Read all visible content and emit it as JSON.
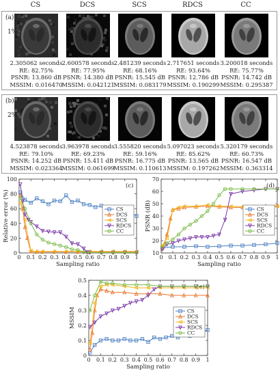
{
  "methods": [
    "CS",
    "DCS",
    "SCS",
    "RDCS",
    "CC"
  ],
  "colors": {
    "CS": "#4a7fc1",
    "DCS": "#e8742a",
    "SCS": "#f2b51e",
    "RDCS": "#7a38a8",
    "CC": "#77b941"
  },
  "panels": [
    {
      "tag": "(a)",
      "pct": "1%",
      "cells": [
        {
          "time": "2.305062 seconds",
          "re": "RE: 82.75%",
          "psnr": "PSNR: 13.860 dB",
          "mssim": "MSSIM: 0.016470"
        },
        {
          "time": "2.600578 seconds",
          "re": "RE: 77.95%",
          "psnr": "PSNR: 14.380 dB",
          "mssim": "MSSIM: 0.042121"
        },
        {
          "time": "2.481239 seconds",
          "re": "RE: 68.16%",
          "psnr": "PSNR: 15.545 dB",
          "mssim": "MSSIM: 0.083179"
        },
        {
          "time": "2.717651 seconds",
          "re": "RE: 93.64%",
          "psnr": "PSNR: 12.786 dB",
          "mssim": "MSSIM: 0.190299"
        },
        {
          "time": "3.200018 seconds",
          "re": "RE: 75.77%",
          "psnr": "PSNR: 14.742 dB",
          "mssim": "MSSIM: 0.295387"
        }
      ]
    },
    {
      "tag": "(b)",
      "pct": "2%",
      "cells": [
        {
          "time": "4.523878 seconds",
          "re": "RE: 79.10%",
          "psnr": "PSNR: 14.252 dB",
          "mssim": "MSSIM: 0.023364"
        },
        {
          "time": "3.963978 seconds",
          "re": "RE: 69.23%",
          "psnr": "PSNR: 15.411 dB",
          "mssim": "MSSIM: 0.061699"
        },
        {
          "time": "3.555820 seconds",
          "re": "RE: 59.16%",
          "psnr": "PSNR: 16.775 dB",
          "mssim": "MSSIM: 0.110613"
        },
        {
          "time": "5.097023 seconds",
          "re": "RE: 85.62%",
          "psnr": "PSNR: 13.565 dB",
          "mssim": "MSSIM: 0.197262"
        },
        {
          "time": "5.320179 seconds",
          "re": "RE: 60.73%",
          "psnr": "PSNR: 16.547 dB",
          "mssim": "MSSIM: 0.363314"
        }
      ]
    }
  ],
  "chart_data": [
    {
      "type": "line",
      "panel_label": "(c)",
      "xlabel": "Sampling ratio",
      "ylabel": "Relative error (%)",
      "xlim": [
        0,
        1
      ],
      "ylim": [
        0,
        100
      ],
      "xticks": [
        0,
        0.1,
        0.2,
        0.3,
        0.4,
        0.5,
        0.6,
        0.7,
        0.8,
        0.9,
        1
      ],
      "xtick_labels": [
        "0",
        "0.1",
        "0.2",
        "0.3",
        "0.4",
        "0.5",
        "0.6",
        "0.7",
        "0.8",
        "0.9",
        "1"
      ],
      "yticks": [
        0,
        20,
        40,
        60,
        80,
        100
      ],
      "ytick_labels": [
        "0",
        "20",
        "40",
        "60",
        "80",
        "100"
      ],
      "legend": "right",
      "series": [
        {
          "name": "CS",
          "x": [
            0.01,
            0.05,
            0.1,
            0.15,
            0.2,
            0.25,
            0.3,
            0.35,
            0.4,
            0.45,
            0.5,
            0.55,
            0.6,
            0.65,
            0.7,
            0.75,
            0.8,
            0.85,
            0.9,
            0.95,
            1
          ],
          "y": [
            82,
            72,
            68,
            74,
            70,
            66,
            71,
            70,
            78,
            69,
            71,
            66,
            65,
            62,
            64,
            60,
            61,
            54,
            62,
            55,
            50
          ]
        },
        {
          "name": "DCS",
          "x": [
            0.01,
            0.03,
            0.05,
            0.07,
            0.1,
            0.15,
            0.2,
            0.3,
            0.4,
            0.5,
            0.6,
            0.7,
            0.8,
            0.9,
            1
          ],
          "y": [
            78,
            60,
            35,
            20,
            2,
            1.5,
            1.5,
            1.5,
            1.5,
            1.5,
            1.5,
            1.5,
            1.5,
            1.5,
            1.5
          ]
        },
        {
          "name": "SCS",
          "x": [
            0.01,
            0.05,
            0.1,
            0.15,
            0.2,
            0.3,
            0.4,
            0.5,
            0.6,
            0.7,
            0.8,
            0.9,
            1
          ],
          "y": [
            68,
            45,
            3,
            2,
            2,
            2,
            2,
            2,
            2,
            2,
            2,
            2,
            2
          ]
        },
        {
          "name": "RDCS",
          "x": [
            0.01,
            0.03,
            0.05,
            0.08,
            0.1,
            0.15,
            0.2,
            0.25,
            0.3,
            0.35,
            0.4,
            0.45,
            0.5,
            0.55,
            0.58,
            0.6,
            0.7,
            0.8,
            0.9,
            1
          ],
          "y": [
            93,
            70,
            52,
            45,
            42,
            36,
            30,
            29,
            28,
            28,
            22,
            13,
            12,
            6,
            1,
            0.5,
            0.5,
            0.5,
            0.5,
            0.5
          ]
        },
        {
          "name": "CC",
          "x": [
            0.01,
            0.05,
            0.1,
            0.15,
            0.2,
            0.25,
            0.3,
            0.35,
            0.4,
            0.45,
            0.5,
            0.55,
            0.6,
            0.7,
            0.8,
            0.9,
            1
          ],
          "y": [
            75,
            60,
            40,
            25,
            18,
            14,
            12,
            10,
            8,
            5,
            4,
            1,
            0.5,
            0.5,
            0.5,
            0.5,
            0.5
          ]
        }
      ]
    },
    {
      "type": "line",
      "panel_label": "(d)",
      "xlabel": "Sampling ratio",
      "ylabel": "PSNR (dB)",
      "xlim": [
        0,
        1
      ],
      "ylim": [
        10,
        70
      ],
      "xticks": [
        0,
        0.1,
        0.2,
        0.3,
        0.4,
        0.5,
        0.6,
        0.7,
        0.8,
        0.9,
        1
      ],
      "xtick_labels": [
        "0",
        "0.1",
        "0.2",
        "0.3",
        "0.4",
        "0.5",
        "0.6",
        "0.7",
        "0.8",
        "0.9",
        "1"
      ],
      "yticks": [
        10,
        20,
        30,
        40,
        50,
        60,
        70
      ],
      "ytick_labels": [
        "10",
        "20",
        "30",
        "40",
        "50",
        "60",
        "70"
      ],
      "legend": "right",
      "series": [
        {
          "name": "CS",
          "x": [
            0.01,
            0.1,
            0.2,
            0.3,
            0.4,
            0.5,
            0.6,
            0.7,
            0.8,
            0.9,
            1
          ],
          "y": [
            14,
            15,
            15,
            15.5,
            15,
            15.5,
            16,
            16,
            16.5,
            17,
            18
          ]
        },
        {
          "name": "DCS",
          "x": [
            0.01,
            0.03,
            0.05,
            0.08,
            0.1,
            0.15,
            0.2,
            0.3,
            0.4,
            0.5,
            0.6,
            0.7,
            0.8,
            0.9,
            1
          ],
          "y": [
            14,
            18,
            25,
            38,
            45,
            46,
            47,
            47.5,
            48,
            47.5,
            47,
            47,
            47.5,
            48,
            48.5
          ]
        },
        {
          "name": "SCS",
          "x": [
            0.01,
            0.05,
            0.1,
            0.15,
            0.2,
            0.3,
            0.4,
            0.5,
            0.6,
            0.7,
            0.8,
            0.9,
            1
          ],
          "y": [
            16,
            22,
            45,
            47,
            48,
            48,
            49,
            48,
            48,
            47.5,
            47,
            47.5,
            48
          ]
        },
        {
          "name": "RDCS",
          "x": [
            0.01,
            0.05,
            0.1,
            0.15,
            0.2,
            0.25,
            0.3,
            0.35,
            0.4,
            0.45,
            0.5,
            0.55,
            0.6,
            0.7,
            0.8,
            0.9,
            1
          ],
          "y": [
            13,
            17,
            18,
            20,
            21,
            22,
            23,
            23,
            23,
            24,
            25,
            37,
            58,
            60,
            61,
            62,
            62
          ]
        },
        {
          "name": "CC",
          "x": [
            0.01,
            0.05,
            0.1,
            0.15,
            0.2,
            0.25,
            0.3,
            0.35,
            0.4,
            0.45,
            0.5,
            0.55,
            0.6,
            0.7,
            0.8,
            0.9,
            1
          ],
          "y": [
            15,
            18,
            21,
            25,
            30,
            33,
            36,
            40,
            44,
            50,
            57,
            62,
            62,
            62,
            62,
            62,
            62
          ]
        }
      ]
    },
    {
      "type": "line",
      "panel_label": "(e)",
      "xlabel": "Sampling ratio",
      "ylabel": "MSSIM",
      "xlim": [
        0,
        1
      ],
      "ylim": [
        0,
        0.5
      ],
      "xticks": [
        0,
        0.1,
        0.2,
        0.3,
        0.4,
        0.5,
        0.6,
        0.7,
        0.8,
        0.9,
        1
      ],
      "xtick_labels": [
        "0",
        "0.1",
        "0.2",
        "0.3",
        "0.4",
        "0.5",
        "0.6",
        "0.7",
        "0.8",
        "0.9",
        "1"
      ],
      "yticks": [
        0,
        0.1,
        0.2,
        0.3,
        0.4,
        0.5
      ],
      "ytick_labels": [
        "0",
        "0.1",
        "0.2",
        "0.3",
        "0.4",
        "0.5"
      ],
      "legend": "right",
      "series": [
        {
          "name": "CS",
          "x": [
            0.01,
            0.05,
            0.1,
            0.15,
            0.2,
            0.25,
            0.3,
            0.35,
            0.4,
            0.45,
            0.5,
            0.55,
            0.6,
            0.65,
            0.7,
            0.75,
            0.8,
            0.85,
            0.9,
            0.95,
            1
          ],
          "y": [
            0.02,
            0.07,
            0.1,
            0.11,
            0.1,
            0.1,
            0.11,
            0.1,
            0.1,
            0.11,
            0.09,
            0.12,
            0.11,
            0.12,
            0.13,
            0.12,
            0.14,
            0.13,
            0.15,
            0.15,
            0.17
          ]
        },
        {
          "name": "DCS",
          "x": [
            0.01,
            0.03,
            0.05,
            0.07,
            0.1,
            0.15,
            0.2,
            0.3,
            0.4,
            0.5,
            0.6,
            0.7,
            0.8,
            0.9,
            1
          ],
          "y": [
            0.04,
            0.15,
            0.3,
            0.4,
            0.44,
            0.43,
            0.42,
            0.42,
            0.41,
            0.41,
            0.41,
            0.4,
            0.4,
            0.4,
            0.4
          ]
        },
        {
          "name": "SCS",
          "x": [
            0.01,
            0.05,
            0.1,
            0.15,
            0.2,
            0.3,
            0.4,
            0.5,
            0.6,
            0.7,
            0.8,
            0.9,
            1
          ],
          "y": [
            0.08,
            0.35,
            0.46,
            0.47,
            0.47,
            0.46,
            0.45,
            0.45,
            0.45,
            0.45,
            0.45,
            0.45,
            0.45
          ]
        },
        {
          "name": "RDCS",
          "x": [
            0.01,
            0.05,
            0.1,
            0.15,
            0.2,
            0.25,
            0.3,
            0.35,
            0.4,
            0.45,
            0.5,
            0.55,
            0.6,
            0.7,
            0.8,
            0.9,
            1
          ],
          "y": [
            0.19,
            0.22,
            0.26,
            0.28,
            0.3,
            0.31,
            0.33,
            0.35,
            0.36,
            0.37,
            0.4,
            0.44,
            0.46,
            0.46,
            0.46,
            0.46,
            0.46
          ]
        },
        {
          "name": "CC",
          "x": [
            0.01,
            0.05,
            0.1,
            0.15,
            0.2,
            0.3,
            0.4,
            0.5,
            0.6,
            0.7,
            0.8,
            0.9,
            1
          ],
          "y": [
            0.3,
            0.4,
            0.49,
            0.48,
            0.48,
            0.47,
            0.47,
            0.47,
            0.46,
            0.46,
            0.46,
            0.46,
            0.46
          ]
        }
      ]
    }
  ]
}
